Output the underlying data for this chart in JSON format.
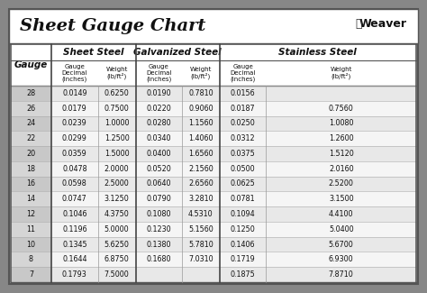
{
  "title": "Sheet Gauge Chart",
  "bg_outer": "#878787",
  "bg_title": "#ffffff",
  "bg_table": "#ffffff",
  "bg_header1": "#e8e8e8",
  "bg_header2": "#f2f2f2",
  "bg_gauge_col": "#d0d0d0",
  "bg_row_even": "#e8e8e8",
  "bg_row_odd": "#f5f5f5",
  "border_color": "#555555",
  "text_color": "#111111",
  "gauges": [
    28,
    26,
    24,
    22,
    20,
    18,
    16,
    14,
    12,
    11,
    10,
    8,
    7
  ],
  "sheet_steel_decimal": [
    "0.0149",
    "0.0179",
    "0.0239",
    "0.0299",
    "0.0359",
    "0.0478",
    "0.0598",
    "0.0747",
    "0.1046",
    "0.1196",
    "0.1345",
    "0.1644",
    "0.1793"
  ],
  "sheet_steel_weight": [
    "0.6250",
    "0.7500",
    "1.0000",
    "1.2500",
    "1.5000",
    "2.0000",
    "2.5000",
    "3.1250",
    "4.3750",
    "5.0000",
    "5.6250",
    "6.8750",
    "7.5000"
  ],
  "galv_steel_decimal": [
    "0.0190",
    "0.0220",
    "0.0280",
    "0.0340",
    "0.0400",
    "0.0520",
    "0.0640",
    "0.0790",
    "0.1080",
    "0.1230",
    "0.1380",
    "0.1680",
    ""
  ],
  "galv_steel_weight": [
    "0.7810",
    "0.9060",
    "1.1560",
    "1.4060",
    "1.6560",
    "2.1560",
    "2.6560",
    "3.2810",
    "4.5310",
    "5.1560",
    "5.7810",
    "7.0310",
    ""
  ],
  "stainless_decimal": [
    "0.0156",
    "0.0187",
    "0.0250",
    "0.0312",
    "0.0375",
    "0.0500",
    "0.0625",
    "0.0781",
    "0.1094",
    "0.1250",
    "0.1406",
    "0.1719",
    "0.1875"
  ],
  "stainless_weight": [
    "",
    "0.7560",
    "1.0080",
    "1.2600",
    "1.5120",
    "2.0160",
    "2.5200",
    "3.1500",
    "4.4100",
    "5.0400",
    "5.6700",
    "6.9300",
    "7.8710"
  ],
  "col_sep_color": "#888888",
  "section_sep_color": "#333333"
}
